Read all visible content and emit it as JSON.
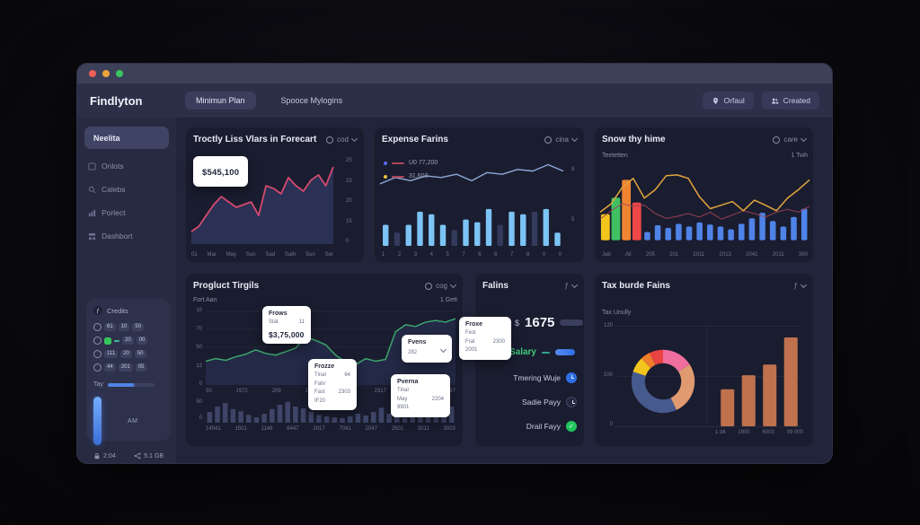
{
  "window": {
    "logo": "Findlyton",
    "tabs": [
      {
        "label": "Minimun Plan",
        "active": true
      },
      {
        "label": "Spooce Mylogins",
        "active": false
      }
    ],
    "actions": [
      {
        "label": "Orfaul",
        "icon": "pin-icon"
      },
      {
        "label": "Created",
        "icon": "users-icon"
      }
    ]
  },
  "sidebar": {
    "items": [
      {
        "label": "Neelita",
        "icon": "grid-icon",
        "active": true
      },
      {
        "label": "Onlots",
        "icon": "box-icon",
        "active": false
      },
      {
        "label": "Calebs",
        "icon": "search-icon",
        "active": false
      },
      {
        "label": "Porlect",
        "icon": "chart-icon",
        "active": false
      },
      {
        "label": "Dashbort",
        "icon": "dashboard-icon",
        "active": false
      }
    ],
    "widget": {
      "title": "Credits",
      "rows": [
        {
          "green": false,
          "chips": [
            "61",
            "10",
            "50"
          ]
        },
        {
          "green": true,
          "chips": [
            "20",
            "00"
          ]
        },
        {
          "green": false,
          "chips": [
            "111",
            "20",
            "50"
          ]
        },
        {
          "green": false,
          "chips": [
            "44",
            "201",
            "05"
          ]
        }
      ],
      "progress_label": "Tay",
      "progress_pct": 55,
      "bar_label": "AM",
      "stats": [
        {
          "icon": "lock-icon",
          "value": "2:04"
        },
        {
          "icon": "share-icon",
          "value": "5.1 GB"
        }
      ]
    }
  },
  "cards": {
    "forecast": {
      "title": "Troctly Liss Vlars in Forecart",
      "menu": "cod",
      "tooltip": "$545,100"
    },
    "expense": {
      "title": "Expense Farins",
      "menu": "cina",
      "legend": [
        {
          "dot": "#5b6cff",
          "label": "U0 77,200"
        },
        {
          "dot": "#e5c43a",
          "label": "31,603"
        }
      ]
    },
    "snow": {
      "title": "Snow thy hime",
      "menu": "care",
      "subtitle_left": "Teetetten",
      "subtitle_right": "1 Twh"
    },
    "product": {
      "title": "Progluct Tirgils",
      "menu": "cog",
      "top_left": "Fort Aan",
      "top_right": "1 Gett",
      "tooltips": [
        {
          "title": "Frows",
          "rows": [
            [
              "Stat",
              "11"
            ]
          ],
          "big": "$3,75,000"
        },
        {
          "title": "Frozze",
          "rows": [
            [
              "Tinal",
              "64"
            ],
            [
              "Fahr",
              ""
            ],
            [
              "Fast",
              "2303"
            ],
            [
              "IF20",
              ""
            ]
          ]
        },
        {
          "title": "Fvens",
          "rows": [
            [
              "282",
              ""
            ]
          ]
        },
        {
          "title": "Pverna",
          "rows": [
            [
              "Tinal",
              ""
            ],
            [
              "May",
              "2204"
            ],
            [
              "9901",
              ""
            ]
          ]
        }
      ]
    },
    "falins": {
      "title": "Falins",
      "menu": "ƒ",
      "tooltip": {
        "title": "Froxe",
        "rows": [
          [
            "Fest",
            ""
          ],
          [
            "Fral",
            "2300"
          ],
          [
            "2001",
            ""
          ]
        ]
      },
      "amount_currency": "$",
      "amount": "1675",
      "salary_label": "Salary",
      "items": [
        {
          "label": "Tmering Wuje",
          "status": "blue"
        },
        {
          "label": "Sadie Payy",
          "status": "dark"
        },
        {
          "label": "Drail Fayy",
          "status": "green"
        }
      ]
    },
    "tax": {
      "title": "Tax burde Fains",
      "menu": "ƒ",
      "subtitle": "Tax Unully"
    }
  },
  "chart_data": [
    {
      "id": "forecast",
      "type": "area",
      "title": "Troctly Liss Vlars in Forecart",
      "x_labels": [
        "01",
        "Mar",
        "May",
        "Sun",
        "Sad",
        "Sath",
        "Sun",
        "Ser"
      ],
      "y_ticks": [
        "25",
        "23",
        "20",
        "15",
        "0"
      ],
      "values": [
        4,
        6,
        10,
        14,
        17,
        15,
        13,
        14,
        15,
        10,
        21,
        20,
        18,
        24,
        21,
        19,
        23,
        25,
        21,
        28
      ],
      "ylim": [
        0,
        30
      ],
      "line_color": "#d64a6f",
      "fill_color": "#2b3154",
      "grid": false
    },
    {
      "id": "expense",
      "type": "line-bar",
      "title": "Expense Farins",
      "x_labels": [
        "1",
        "2",
        "3",
        "4",
        "5",
        "7",
        "6",
        "6",
        "7",
        "8",
        "0",
        "0"
      ],
      "right_ticks": [
        "8",
        "5"
      ],
      "line": {
        "values": [
          9,
          13,
          11,
          14,
          13,
          15,
          11,
          16,
          15,
          18,
          17,
          21,
          17
        ],
        "ylim": [
          0,
          24
        ],
        "color": "#8fa8d8"
      },
      "bars": [
        {
          "v": 8,
          "dim": false
        },
        {
          "v": 5,
          "dim": true
        },
        {
          "v": 8,
          "dim": false
        },
        {
          "v": 13,
          "dim": false
        },
        {
          "v": 12,
          "dim": false
        },
        {
          "v": 8,
          "dim": false
        },
        {
          "v": 6,
          "dim": true
        },
        {
          "v": 10,
          "dim": false
        },
        {
          "v": 9,
          "dim": false
        },
        {
          "v": 14,
          "dim": false
        },
        {
          "v": 8,
          "dim": true
        },
        {
          "v": 13,
          "dim": false
        },
        {
          "v": 12,
          "dim": false
        },
        {
          "v": 13,
          "dim": true
        },
        {
          "v": 14,
          "dim": false
        },
        {
          "v": 5,
          "dim": false
        }
      ],
      "bar_ylim": [
        0,
        16
      ],
      "bar_color": "#7cc4f5",
      "dim_color": "#343a5c"
    },
    {
      "id": "snow",
      "type": "bar-multiline",
      "title": "Snow thy hime",
      "x_labels": [
        "Jab",
        "All",
        "205",
        "201",
        "2011",
        "2013",
        "2041",
        "2011",
        "390"
      ],
      "bars": [
        {
          "v": 38,
          "color": "#f3c51c"
        },
        {
          "v": 62,
          "color": "#3fc163"
        },
        {
          "v": 88,
          "color": "#ef8432"
        },
        {
          "v": 55,
          "color": "#ee4747"
        },
        {
          "v": 12,
          "color": "#4f83e8"
        },
        {
          "v": 22,
          "color": "#4f83e8"
        },
        {
          "v": 18,
          "color": "#4f83e8"
        },
        {
          "v": 24,
          "color": "#4f83e8"
        },
        {
          "v": 20,
          "color": "#4f83e8"
        },
        {
          "v": 26,
          "color": "#4f83e8"
        },
        {
          "v": 23,
          "color": "#4f83e8"
        },
        {
          "v": 20,
          "color": "#4f83e8"
        },
        {
          "v": 16,
          "color": "#4f83e8"
        },
        {
          "v": 24,
          "color": "#4f83e8"
        },
        {
          "v": 32,
          "color": "#4f83e8"
        },
        {
          "v": 40,
          "color": "#4f83e8"
        },
        {
          "v": 28,
          "color": "#4f83e8"
        },
        {
          "v": 20,
          "color": "#4f83e8"
        },
        {
          "v": 34,
          "color": "#4f83e8"
        },
        {
          "v": 46,
          "color": "#4f83e8"
        }
      ],
      "ylim": [
        0,
        100
      ],
      "line1": {
        "color": "#e2a43b",
        "values": [
          40,
          52,
          75,
          88,
          60,
          72,
          92,
          93,
          88,
          62,
          45,
          50,
          55,
          42,
          57,
          50,
          42,
          60,
          72,
          86
        ]
      },
      "line2": {
        "color": "#a34358",
        "values": [
          30,
          42,
          52,
          48,
          50,
          38,
          31,
          34,
          38,
          33,
          40,
          30,
          36,
          42,
          38,
          33,
          40,
          44,
          40,
          48
        ]
      }
    },
    {
      "id": "product",
      "type": "area-line",
      "title": "Progluct Tirgils",
      "y_ticks": [
        "10",
        "70",
        "50",
        "13",
        "0"
      ],
      "x_labels": [
        "50",
        "1972",
        "209",
        "2103",
        "204",
        "2317",
        "2447",
        "297"
      ],
      "values": [
        24,
        27,
        25,
        29,
        32,
        37,
        33,
        31,
        35,
        39,
        52,
        48,
        43,
        31,
        23,
        20,
        27,
        24,
        26,
        58,
        66,
        64,
        69,
        71,
        69,
        73
      ],
      "ylim": [
        0,
        80
      ],
      "line_color": "#3da56f",
      "fill_color": "#232946",
      "grid": true
    },
    {
      "id": "product_mini",
      "type": "bar",
      "y_ticks": [
        "50",
        "0"
      ],
      "x_labels": [
        "14941",
        "1501",
        "1148",
        "6447",
        "2017",
        "7041",
        "2047",
        "2501",
        "3011",
        "3003"
      ],
      "values": [
        30,
        45,
        55,
        38,
        32,
        22,
        15,
        25,
        38,
        50,
        58,
        45,
        40,
        30,
        22,
        18,
        15,
        13,
        18,
        25,
        20,
        30,
        42,
        25,
        18,
        13,
        22,
        15,
        28,
        35,
        18,
        45
      ],
      "ylim": [
        0,
        65
      ],
      "bar_color": "#3e4568"
    },
    {
      "id": "tax_donut",
      "type": "pie",
      "title": "Tax burde Fains",
      "segments": [
        {
          "color": "#ef6e9e",
          "value": 16
        },
        {
          "color": "#e09a70",
          "value": 27
        },
        {
          "color": "#475a8e",
          "value": 37
        },
        {
          "color": "#f3c51c",
          "value": 8
        },
        {
          "color": "#ef7d2a",
          "value": 5
        },
        {
          "color": "#ea4343",
          "value": 7
        }
      ],
      "start_deg": 0,
      "inner_radius": 23,
      "outer_radius": 40
    },
    {
      "id": "tax_bars",
      "type": "bar",
      "y_ticks": [
        "120",
        "100",
        "0"
      ],
      "x_labels": [
        "1 d4",
        "1900",
        "6003",
        "09 000"
      ],
      "values": [
        45,
        62,
        75,
        108
      ],
      "ylim": [
        0,
        120
      ],
      "bar_color": "#c0714d"
    }
  ]
}
